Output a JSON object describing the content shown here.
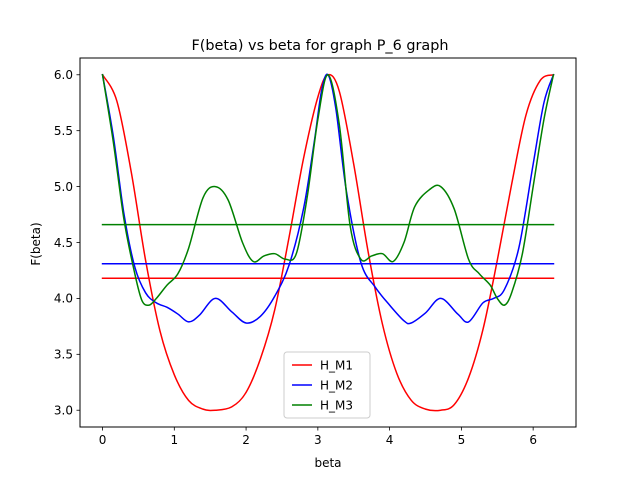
{
  "chart_data": {
    "type": "line",
    "title": "F(beta) vs beta for graph P_6 graph",
    "xlabel": "beta",
    "ylabel": "F(beta)",
    "xlim": [
      -0.314,
      6.597
    ],
    "ylim": [
      2.85,
      6.15
    ],
    "xticks": [
      0,
      1,
      2,
      3,
      4,
      5,
      6
    ],
    "xtick_labels": [
      "0",
      "1",
      "2",
      "3",
      "4",
      "5",
      "6"
    ],
    "yticks": [
      3.0,
      3.5,
      4.0,
      4.5,
      5.0,
      5.5,
      6.0
    ],
    "ytick_labels": [
      "3.0",
      "3.5",
      "4.0",
      "4.5",
      "5.0",
      "5.5",
      "6.0"
    ],
    "grid": false,
    "legend_position": "lower-center",
    "series": [
      {
        "name": "H_M1",
        "color": "#ff0000",
        "x": [
          0.0,
          0.2,
          0.4,
          0.6,
          0.8,
          1.0,
          1.2,
          1.4,
          1.5708,
          1.8,
          2.0,
          2.2,
          2.4,
          2.6,
          2.8,
          3.0,
          3.1416,
          3.3,
          3.5,
          3.7,
          3.9,
          4.1,
          4.3,
          4.5,
          4.7124,
          4.9,
          5.1,
          5.3,
          5.5,
          5.7,
          5.9,
          6.1,
          6.2832
        ],
        "y": [
          6.0,
          5.764,
          5.13,
          4.34,
          3.71,
          3.317,
          3.087,
          3.01,
          3.0,
          3.03,
          3.16,
          3.46,
          3.9,
          4.55,
          5.25,
          5.8,
          6.0,
          5.85,
          5.2,
          4.42,
          3.77,
          3.33,
          3.09,
          3.01,
          3.0,
          3.05,
          3.29,
          3.72,
          4.34,
          5.02,
          5.64,
          5.95,
          6.0
        ]
      },
      {
        "name": "H_M1",
        "color": "#ff0000",
        "x": [
          0.0,
          6.2832
        ],
        "y": [
          4.18,
          4.18
        ]
      },
      {
        "name": "H_M2",
        "color": "#0000ff",
        "x": [
          0.0,
          0.15,
          0.3,
          0.45,
          0.6,
          0.75,
          0.9,
          1.05,
          1.2,
          1.35,
          1.5708,
          1.8,
          2.0,
          2.2,
          2.4,
          2.6,
          2.8,
          2.95,
          3.05,
          3.1416,
          3.25,
          3.4,
          3.6,
          3.8,
          4.0,
          4.2,
          4.3,
          4.5,
          4.7124,
          4.95,
          5.1,
          5.3,
          5.45,
          5.6,
          5.8,
          6.0,
          6.15,
          6.2832
        ],
        "y": [
          6.0,
          5.45,
          4.75,
          4.28,
          4.05,
          3.96,
          3.92,
          3.86,
          3.79,
          3.85,
          4.0,
          3.88,
          3.78,
          3.84,
          4.02,
          4.3,
          4.8,
          5.4,
          5.85,
          6.0,
          5.7,
          4.95,
          4.32,
          4.1,
          3.94,
          3.8,
          3.78,
          3.87,
          4.0,
          3.86,
          3.79,
          3.96,
          4.0,
          4.08,
          4.45,
          5.2,
          5.75,
          6.0
        ]
      },
      {
        "name": "H_M2",
        "color": "#0000ff",
        "x": [
          0.0,
          6.2832
        ],
        "y": [
          4.31,
          4.31
        ]
      },
      {
        "name": "H_M3",
        "color": "#008000",
        "x": [
          0.0,
          0.15,
          0.3,
          0.45,
          0.55,
          0.65,
          0.75,
          0.9,
          1.05,
          1.2,
          1.4,
          1.5708,
          1.75,
          1.95,
          2.1,
          2.25,
          2.4,
          2.55,
          2.7,
          2.85,
          3.0,
          3.1416,
          3.3,
          3.45,
          3.6,
          3.75,
          3.9,
          4.05,
          4.2,
          4.35,
          4.55,
          4.7124,
          4.9,
          5.1,
          5.25,
          5.4,
          5.5,
          5.6,
          5.7,
          5.85,
          6.0,
          6.15,
          6.2832
        ],
        "y": [
          6.0,
          5.4,
          4.7,
          4.22,
          3.98,
          3.94,
          4.0,
          4.12,
          4.22,
          4.45,
          4.9,
          5.0,
          4.88,
          4.5,
          4.33,
          4.38,
          4.4,
          4.35,
          4.4,
          4.9,
          5.6,
          6.0,
          5.55,
          4.65,
          4.35,
          4.38,
          4.4,
          4.33,
          4.5,
          4.82,
          4.97,
          5.0,
          4.8,
          4.35,
          4.22,
          4.12,
          4.0,
          3.94,
          4.05,
          4.4,
          5.0,
          5.6,
          6.0
        ]
      },
      {
        "name": "H_M3",
        "color": "#008000",
        "x": [
          0.0,
          6.2832
        ],
        "y": [
          4.66,
          4.66
        ]
      }
    ],
    "legend": [
      {
        "label": "H_M1",
        "color": "#ff0000"
      },
      {
        "label": "H_M2",
        "color": "#0000ff"
      },
      {
        "label": "H_M3",
        "color": "#008000"
      }
    ]
  }
}
